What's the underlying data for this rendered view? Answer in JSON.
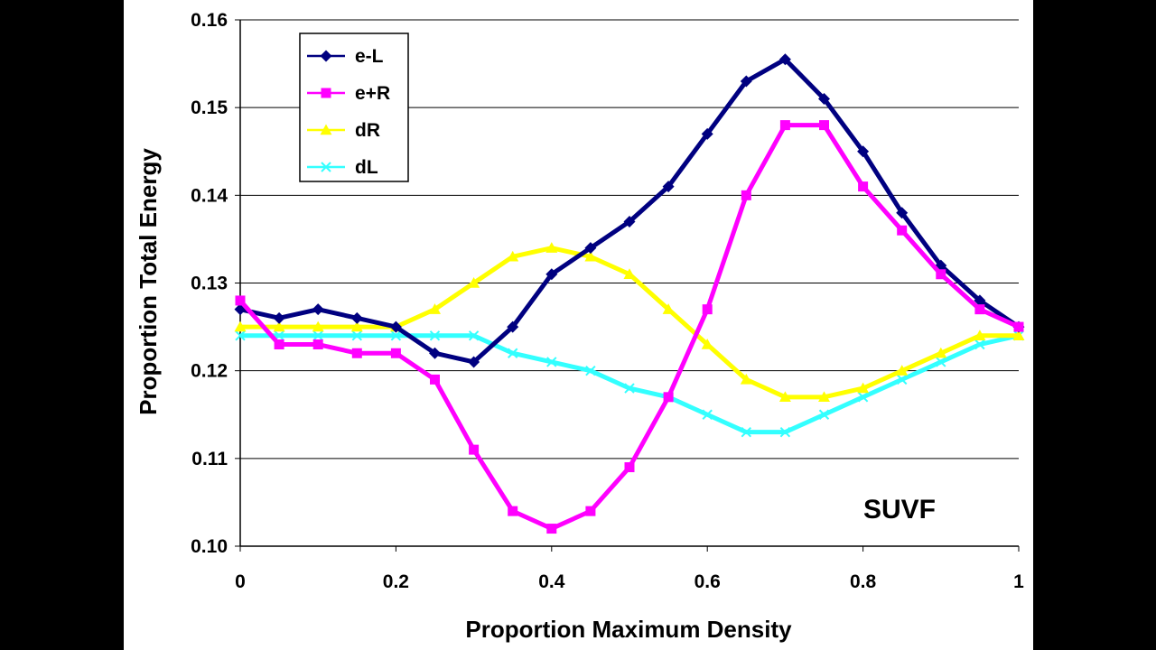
{
  "chart_data": {
    "type": "scatter",
    "xlabel": "Proportion Maximum Density",
    "ylabel": "Proportion Total Energy",
    "xlim": [
      0,
      1
    ],
    "ylim": [
      0.1,
      0.16
    ],
    "x_ticks": [
      "0",
      "0.2",
      "0.4",
      "0.6",
      "0.8",
      "1"
    ],
    "y_ticks": [
      "0.10",
      "0.11",
      "0.12",
      "0.13",
      "0.14",
      "0.15",
      "0.16"
    ],
    "grid": "horizontal",
    "legend_position": "top-left",
    "annotation": "SUVF",
    "x": [
      0,
      0.05,
      0.1,
      0.15,
      0.2,
      0.25,
      0.3,
      0.35,
      0.4,
      0.45,
      0.5,
      0.55,
      0.6,
      0.65,
      0.7,
      0.75,
      0.8,
      0.85,
      0.9,
      0.95,
      1.0
    ],
    "series": [
      {
        "name": "e-L",
        "color": "#000080",
        "marker": "diamond",
        "values": [
          0.127,
          0.126,
          0.127,
          0.126,
          0.125,
          0.122,
          0.121,
          0.125,
          0.131,
          0.134,
          0.137,
          0.141,
          0.147,
          0.153,
          0.1555,
          0.151,
          0.145,
          0.138,
          0.132,
          0.128,
          0.125
        ]
      },
      {
        "name": "e+R",
        "color": "#ff00ff",
        "marker": "square",
        "values": [
          0.128,
          0.123,
          0.123,
          0.122,
          0.122,
          0.119,
          0.111,
          0.104,
          0.102,
          0.104,
          0.109,
          0.117,
          0.127,
          0.14,
          0.148,
          0.148,
          0.141,
          0.136,
          0.131,
          0.127,
          0.125
        ]
      },
      {
        "name": "dR",
        "color": "#ffff00",
        "marker": "triangle",
        "values": [
          0.125,
          0.125,
          0.125,
          0.125,
          0.125,
          0.127,
          0.13,
          0.133,
          0.134,
          0.133,
          0.131,
          0.127,
          0.123,
          0.119,
          0.117,
          0.117,
          0.118,
          0.12,
          0.122,
          0.124,
          0.124
        ]
      },
      {
        "name": "dL",
        "color": "#33ffff",
        "marker": "x",
        "values": [
          0.124,
          0.124,
          0.124,
          0.124,
          0.124,
          0.124,
          0.124,
          0.122,
          0.121,
          0.12,
          0.118,
          0.117,
          0.115,
          0.113,
          0.113,
          0.115,
          0.117,
          0.119,
          0.121,
          0.123,
          0.124
        ]
      }
    ]
  }
}
